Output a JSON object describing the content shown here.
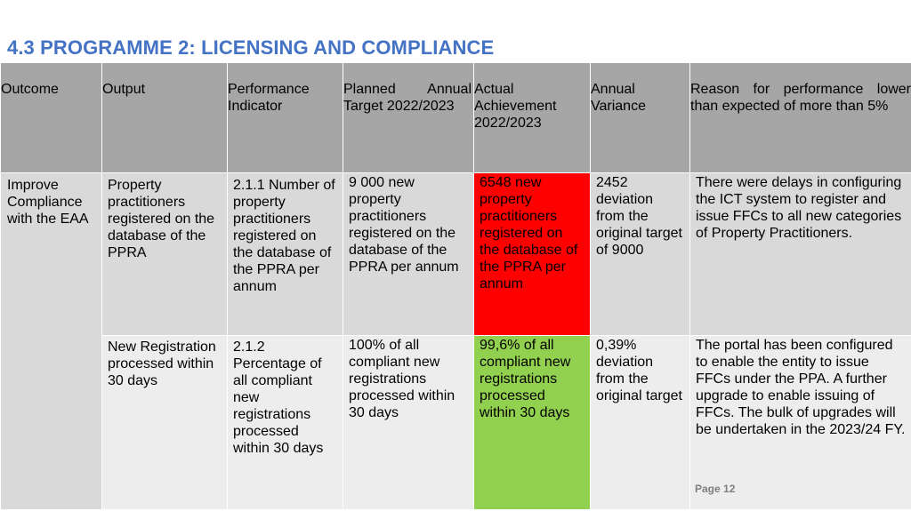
{
  "title": "4.3 PROGRAMME 2: LICENSING AND COMPLIANCE",
  "table": {
    "headers": {
      "outcome": "Outcome",
      "output": "Output",
      "performance_indicator": "Performance Indicator",
      "planned_target_word1": "Planned",
      "planned_target_word2": "Annual",
      "planned_target_rest": "Target 2022/2023",
      "actual_achievement": "Actual Achievement 2022/2023",
      "annual_variance": "Annual Variance",
      "reason": "Reason for performance lower than expected of more than 5%"
    },
    "outcome": "Improve Compliance with the EAA",
    "rows": [
      {
        "output": "Property practitioners registered on the database of the PPRA",
        "performance_indicator": "2.1.1 Number of property practitioners registered on the database of the PPRA per annum",
        "planned_target": "9 000 new property practitioners registered on the database of the PPRA per annum",
        "actual_achievement": "6548 new property practitioners registered on the database of the PPRA per annum",
        "annual_variance": "2452 deviation from the original target of 9000",
        "reason": "There were delays in configuring the ICT system to register and issue FFCs to all new categories of Property Practitioners.",
        "status_color": "#ff0000"
      },
      {
        "output": "New Registration processed within 30 days",
        "performance_indicator": "2.1.2 Percentage of all compliant new registrations processed within 30 days",
        "planned_target": "100% of all compliant new registrations processed within 30 days",
        "actual_achievement": "99,6% of all compliant new registrations processed within 30 days",
        "annual_variance": "0,39% deviation from the original target",
        "reason": "The portal has been configured to enable the entity to issue FFCs under the PPA. A further upgrade to enable issuing of FFCs. The bulk of upgrades will be undertaken in the 2023/24 FY.",
        "status_color": "#92d050"
      }
    ]
  },
  "footer": {
    "page_number": "Page 12"
  },
  "colors": {
    "title": "#4472c4",
    "header_bg": "#a6a6a6",
    "row1_bg": "#d9d9d9",
    "row2_bg": "#ededed",
    "not_achieved": "#ff0000",
    "achieved": "#92d050"
  }
}
